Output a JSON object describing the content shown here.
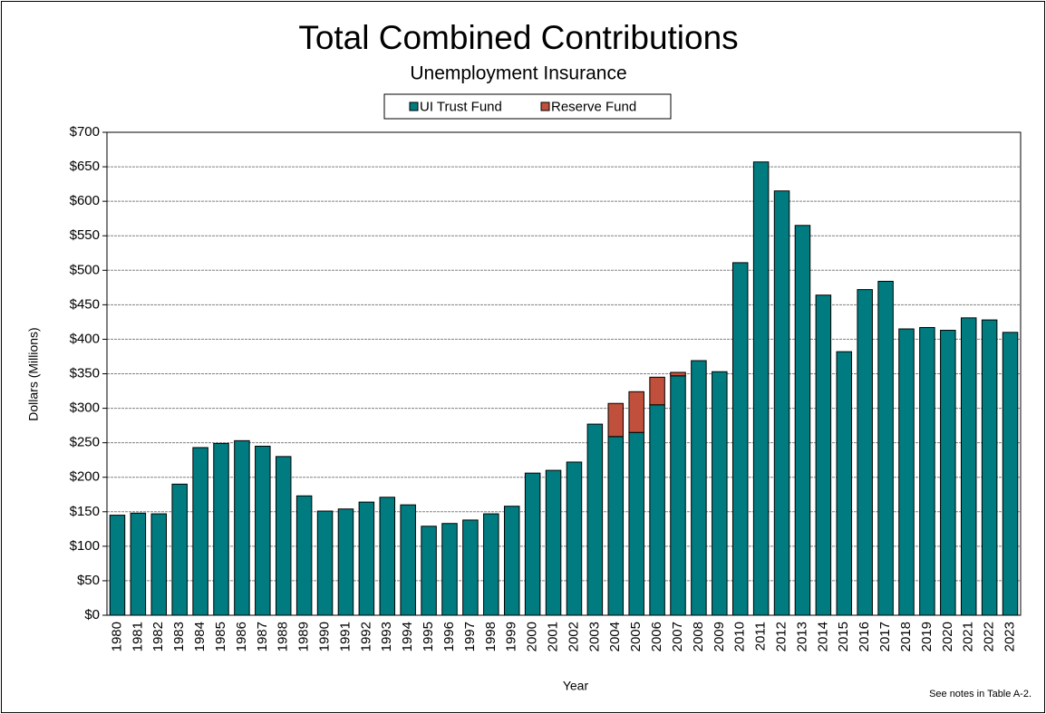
{
  "chart_data": {
    "type": "stacked-bar",
    "title": "Total Combined Contributions",
    "subtitle": "Unemployment Insurance",
    "x_label": "Year",
    "y_label": "Dollars (Millions)",
    "note": "See notes  in Table A-2.",
    "categories": [
      "1980",
      "1981",
      "1982",
      "1983",
      "1984",
      "1985",
      "1986",
      "1987",
      "1988",
      "1989",
      "1990",
      "1991",
      "1992",
      "1993",
      "1994",
      "1995",
      "1996",
      "1997",
      "1998",
      "1999",
      "2000",
      "2001",
      "2002",
      "2003",
      "2004",
      "2005",
      "2006",
      "2007",
      "2008",
      "2009",
      "2010",
      "2011",
      "2012",
      "2013",
      "2014",
      "2015",
      "2016",
      "2017",
      "2018",
      "2019",
      "2020",
      "2021",
      "2022",
      "2023"
    ],
    "series": [
      {
        "name": "UI Trust Fund",
        "color": "#007c80",
        "values": [
          145,
          148,
          147,
          190,
          243,
          249,
          253,
          245,
          230,
          173,
          151,
          154,
          164,
          171,
          160,
          129,
          133,
          138,
          147,
          158,
          206,
          210,
          222,
          277,
          259,
          265,
          305,
          347,
          369,
          353,
          511,
          657,
          615,
          565,
          464,
          382,
          472,
          484,
          415,
          417,
          413,
          431,
          428,
          410
        ]
      },
      {
        "name": "Reserve Fund",
        "color": "#c0503b",
        "values": [
          null,
          null,
          null,
          null,
          null,
          null,
          null,
          null,
          null,
          null,
          null,
          null,
          null,
          null,
          null,
          null,
          null,
          null,
          null,
          null,
          null,
          null,
          null,
          null,
          48,
          59,
          40,
          5,
          null,
          null,
          null,
          null,
          null,
          null,
          null,
          null,
          null,
          null,
          null,
          null,
          null,
          null,
          null,
          null
        ]
      }
    ],
    "ylim": [
      0,
      700
    ],
    "yticks": [
      {
        "value": 0,
        "label": "$0"
      },
      {
        "value": 50,
        "label": "$50"
      },
      {
        "value": 100,
        "label": "$100"
      },
      {
        "value": 150,
        "label": "$150"
      },
      {
        "value": 200,
        "label": "$200"
      },
      {
        "value": 250,
        "label": "$250"
      },
      {
        "value": 300,
        "label": "$300"
      },
      {
        "value": 350,
        "label": "$350"
      },
      {
        "value": 400,
        "label": "$400"
      },
      {
        "value": 450,
        "label": "$450"
      },
      {
        "value": 500,
        "label": "$500"
      },
      {
        "value": 550,
        "label": "$550"
      },
      {
        "value": 600,
        "label": "$600"
      },
      {
        "value": 650,
        "label": "$650"
      },
      {
        "value": 700,
        "label": "$700"
      }
    ],
    "grid": true,
    "legend": "top"
  }
}
